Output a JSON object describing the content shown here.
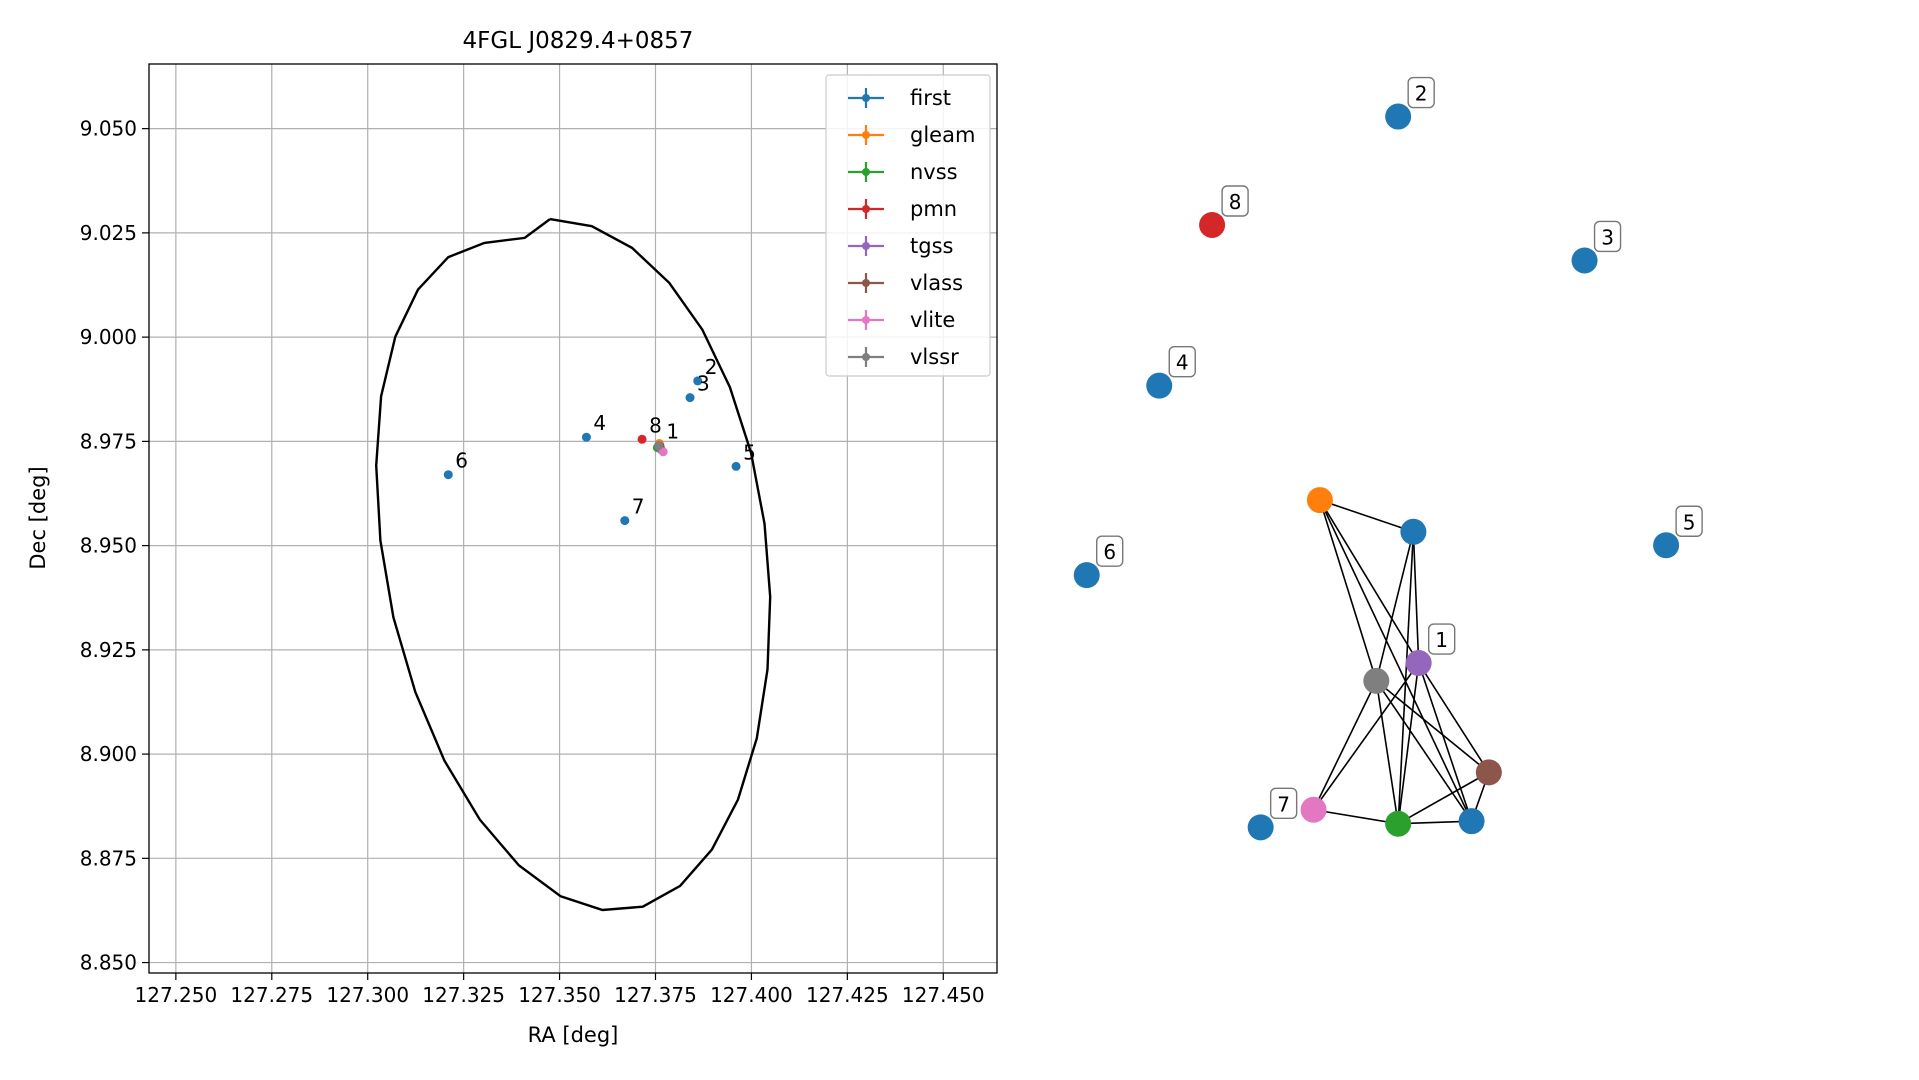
{
  "chart_data": [
    {
      "type": "scatter",
      "title": "4FGL J0829.4+0857",
      "xlabel": "RA [deg]",
      "ylabel": "Dec [deg]",
      "xlim": [
        127.243,
        127.464
      ],
      "ylim": [
        8.8475,
        9.0655
      ],
      "xticks": [
        127.25,
        127.275,
        127.3,
        127.325,
        127.35,
        127.375,
        127.4,
        127.425,
        127.45
      ],
      "xtick_labels": [
        "127.250",
        "127.275",
        "127.300",
        "127.325",
        "127.350",
        "127.375",
        "127.400",
        "127.425",
        "127.450"
      ],
      "yticks": [
        8.85,
        8.875,
        8.9,
        8.925,
        8.95,
        8.975,
        9.0,
        9.025,
        9.05
      ],
      "ytick_labels": [
        "8.850",
        "8.875",
        "8.900",
        "8.925",
        "8.950",
        "8.975",
        "9.000",
        "9.025",
        "9.050"
      ],
      "grid": true,
      "legend_position": "top-right",
      "series": [
        {
          "name": "first",
          "color": "#1f77b4",
          "points": [
            [
              127.376,
              8.974
            ],
            [
              127.386,
              8.9895
            ],
            [
              127.384,
              8.9855
            ],
            [
              127.357,
              8.976
            ],
            [
              127.396,
              8.969
            ],
            [
              127.321,
              8.967
            ],
            [
              127.367,
              8.956
            ]
          ]
        },
        {
          "name": "gleam",
          "color": "#ff7f0e",
          "points": [
            [
              127.376,
              8.9745
            ]
          ]
        },
        {
          "name": "nvss",
          "color": "#2ca02c",
          "points": [
            [
              127.3755,
              8.9735
            ]
          ]
        },
        {
          "name": "pmn",
          "color": "#d62728",
          "points": [
            [
              127.3715,
              8.9755
            ]
          ]
        },
        {
          "name": "tgss",
          "color": "#9467bd",
          "points": [
            [
              127.3765,
              8.973
            ]
          ]
        },
        {
          "name": "vlass",
          "color": "#8c564b",
          "points": [
            [
              127.3762,
              8.9738
            ]
          ]
        },
        {
          "name": "vlite",
          "color": "#e377c2",
          "points": [
            [
              127.377,
              8.9725
            ]
          ]
        },
        {
          "name": "vlssr",
          "color": "#7f7f7f",
          "points": [
            [
              127.3758,
              8.974
            ]
          ]
        }
      ],
      "ellipse": {
        "color": "#000000",
        "points": [
          [
            127.3475,
            9.0283
          ],
          [
            127.3584,
            9.0266
          ],
          [
            127.3689,
            9.0214
          ],
          [
            127.3786,
            9.013
          ],
          [
            127.3872,
            9.0018
          ],
          [
            127.3944,
            8.988
          ],
          [
            127.3999,
            8.9723
          ],
          [
            127.4034,
            8.9553
          ],
          [
            127.4049,
            8.9377
          ],
          [
            127.4042,
            8.9203
          ],
          [
            127.4014,
            8.9038
          ],
          [
            127.3965,
            8.8891
          ],
          [
            127.3897,
            8.8771
          ],
          [
            127.3814,
            8.8684
          ],
          [
            127.3717,
            8.8634
          ],
          [
            127.3612,
            8.8626
          ],
          [
            127.3503,
            8.8659
          ],
          [
            127.3394,
            8.8733
          ],
          [
            127.3292,
            8.8843
          ],
          [
            127.32,
            8.8984
          ],
          [
            127.3124,
            8.9149
          ],
          [
            127.3067,
            8.9328
          ],
          [
            127.3033,
            8.9512
          ],
          [
            127.3022,
            8.9692
          ],
          [
            127.3035,
            8.9858
          ],
          [
            127.3072,
            9.0001
          ],
          [
            127.3131,
            9.0114
          ],
          [
            127.321,
            9.0192
          ],
          [
            127.3304,
            9.0226
          ],
          [
            127.3409,
            9.0238
          ],
          [
            127.3475,
            9.0283
          ]
        ]
      },
      "point_labels": [
        {
          "label": "1",
          "x": 127.376,
          "y": 8.974
        },
        {
          "label": "2",
          "x": 127.386,
          "y": 8.9895
        },
        {
          "label": "3",
          "x": 127.384,
          "y": 8.9855
        },
        {
          "label": "4",
          "x": 127.357,
          "y": 8.976
        },
        {
          "label": "5",
          "x": 127.396,
          "y": 8.969
        },
        {
          "label": "6",
          "x": 127.321,
          "y": 8.967
        },
        {
          "label": "7",
          "x": 127.367,
          "y": 8.956
        },
        {
          "label": "8",
          "x": 127.3715,
          "y": 8.9755
        }
      ]
    },
    {
      "type": "network",
      "nodes": [
        {
          "id": "2",
          "color": "#1f77b4",
          "label": "2",
          "pos": [
            0.4807,
            0.96
          ]
        },
        {
          "id": "8",
          "color": "#d62728",
          "label": "8",
          "pos": [
            0.1895,
            0.7834
          ]
        },
        {
          "id": "3",
          "color": "#1f77b4",
          "label": "3",
          "pos": [
            0.7724,
            0.7256
          ]
        },
        {
          "id": "4",
          "color": "#1f77b4",
          "label": "4",
          "pos": [
            0.1068,
            0.5217
          ]
        },
        {
          "id": "5",
          "color": "#1f77b4",
          "label": "5",
          "pos": [
            0.9,
            0.2618
          ]
        },
        {
          "id": "6",
          "color": "#1f77b4",
          "label": "6",
          "pos": [
            -0.0067,
            0.2131
          ]
        },
        {
          "id": "7",
          "color": "#1f77b4",
          "label": "7",
          "pos": [
            0.2655,
            -0.1976
          ]
        },
        {
          "id": "gleam",
          "color": "#ff7f0e",
          "label": "",
          "pos": [
            0.3582,
            0.3354
          ]
        },
        {
          "id": "first1",
          "color": "#1f77b4",
          "label": "",
          "pos": [
            0.5045,
            0.2837
          ]
        },
        {
          "id": "tgss",
          "color": "#9467bd",
          "label": "1",
          "pos": [
            0.5128,
            0.07
          ]
        },
        {
          "id": "vlssr",
          "color": "#7f7f7f",
          "label": "",
          "pos": [
            0.4465,
            0.0409
          ]
        },
        {
          "id": "vlass",
          "color": "#8c564b",
          "label": "",
          "pos": [
            0.6226,
            -0.1081
          ]
        },
        {
          "id": "vlite",
          "color": "#e377c2",
          "label": "",
          "pos": [
            0.3483,
            -0.169
          ]
        },
        {
          "id": "nvss",
          "color": "#2ca02c",
          "label": "",
          "pos": [
            0.4807,
            -0.1917
          ]
        },
        {
          "id": "first2",
          "color": "#1f77b4",
          "label": "",
          "pos": [
            0.5956,
            -0.1876
          ]
        }
      ],
      "edges": [
        [
          "gleam",
          "first1"
        ],
        [
          "gleam",
          "tgss"
        ],
        [
          "gleam",
          "first2"
        ],
        [
          "gleam",
          "vlssr"
        ],
        [
          "first1",
          "tgss"
        ],
        [
          "first1",
          "vlssr"
        ],
        [
          "first1",
          "nvss"
        ],
        [
          "tgss",
          "vlite"
        ],
        [
          "tgss",
          "vlass"
        ],
        [
          "tgss",
          "first2"
        ],
        [
          "tgss",
          "nvss"
        ],
        [
          "vlssr",
          "vlite"
        ],
        [
          "vlssr",
          "nvss"
        ],
        [
          "vlssr",
          "vlass"
        ],
        [
          "vlssr",
          "first2"
        ],
        [
          "vlite",
          "nvss"
        ],
        [
          "nvss",
          "vlass"
        ],
        [
          "nvss",
          "first2"
        ],
        [
          "vlass",
          "first2"
        ]
      ]
    }
  ]
}
